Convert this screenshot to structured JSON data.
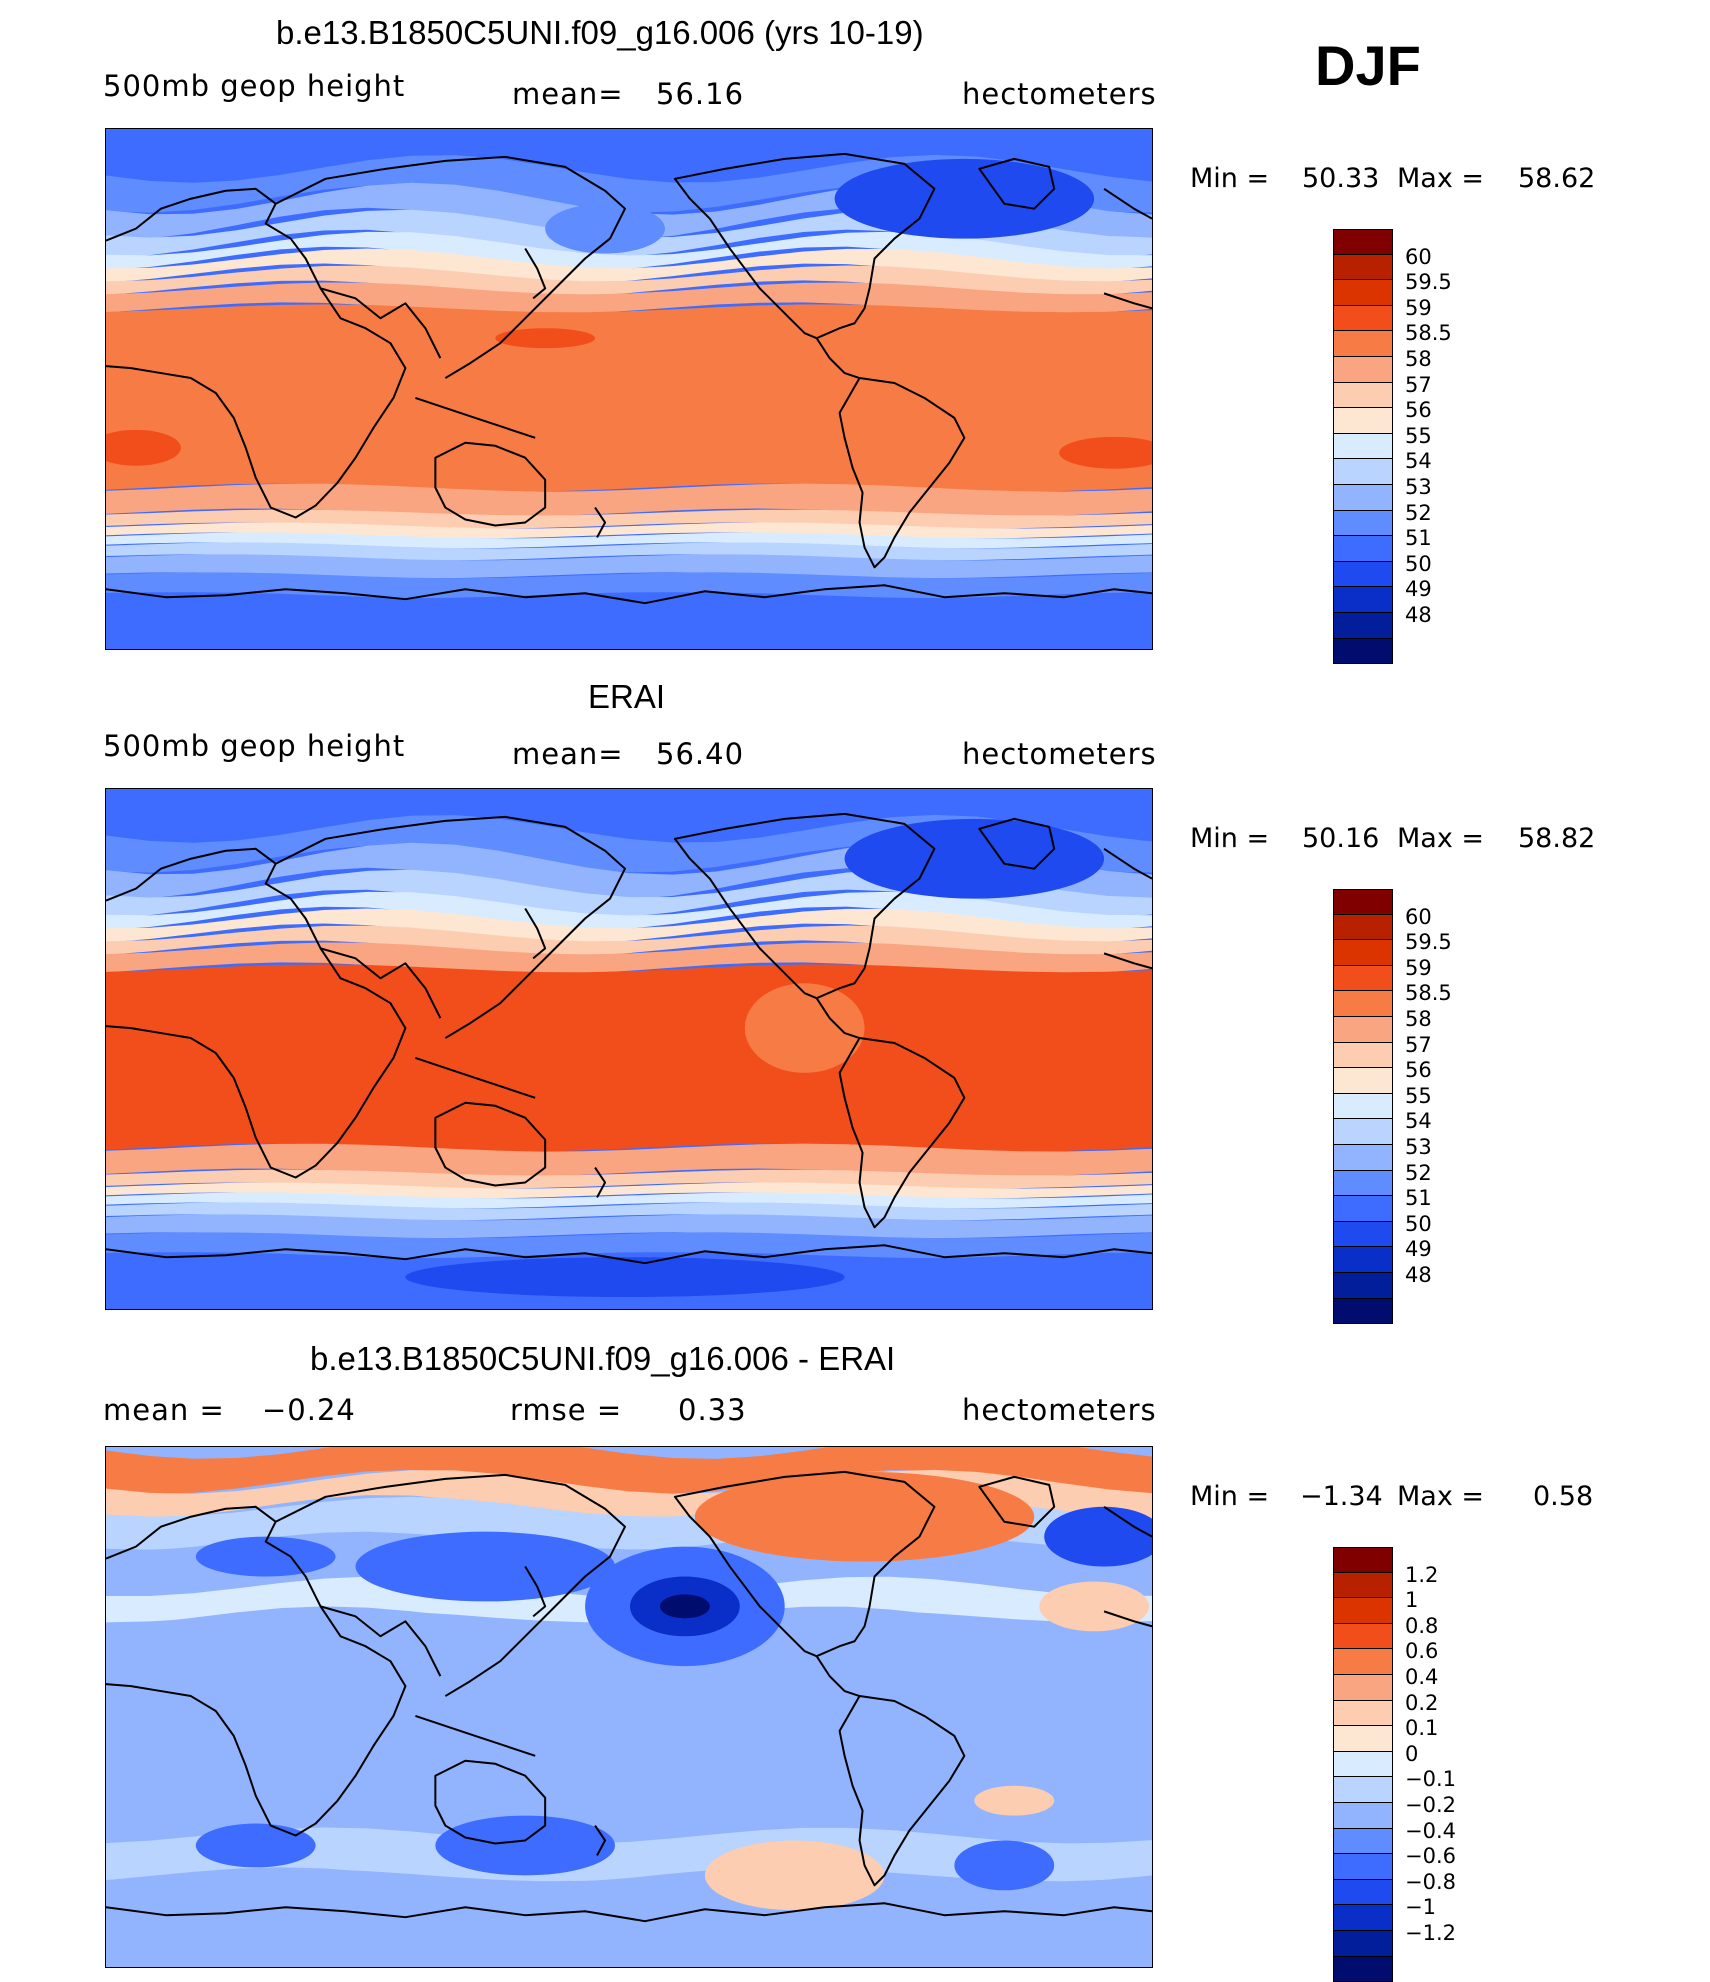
{
  "season": "DJF",
  "coast_stroke": "#000000",
  "panels": [
    {
      "id": "model",
      "title": "b.e13.B1850C5UNI.f09_g16.006 (yrs 10-19)",
      "left_label": "500mb geop height",
      "mid_label": "mean=",
      "mid_value": "56.16",
      "right_label": "hectometers",
      "min_label": "Min =",
      "min_value": "50.33",
      "max_label": "Max =",
      "max_value": "58.62",
      "colorbar": {
        "colors": [
          "#800000",
          "#B82100",
          "#DC3400",
          "#F24E1B",
          "#F77B45",
          "#F9A582",
          "#FCCDB0",
          "#FDE6D2",
          "#D9ECFF",
          "#B8D4FF",
          "#92B4FF",
          "#5F8CFF",
          "#3E6CFF",
          "#1E4AF0",
          "#0A2FC8",
          "#031E9A",
          "#000C6E"
        ],
        "labels": [
          "60",
          "59.5",
          "59",
          "58.5",
          "58",
          "57",
          "56",
          "55",
          "54",
          "53",
          "52",
          "51",
          "50",
          "49",
          "48"
        ]
      },
      "map_style": "zonal_model"
    },
    {
      "id": "obs",
      "title": "ERAI",
      "left_label": "500mb geop height",
      "mid_label": "mean=",
      "mid_value": "56.40",
      "right_label": "hectometers",
      "min_label": "Min =",
      "min_value": "50.16",
      "max_label": "Max =",
      "max_value": "58.82",
      "colorbar": {
        "colors": [
          "#800000",
          "#B82100",
          "#DC3400",
          "#F24E1B",
          "#F77B45",
          "#F9A582",
          "#FCCDB0",
          "#FDE6D2",
          "#D9ECFF",
          "#B8D4FF",
          "#92B4FF",
          "#5F8CFF",
          "#3E6CFF",
          "#1E4AF0",
          "#0A2FC8",
          "#031E9A",
          "#000C6E"
        ],
        "labels": [
          "60",
          "59.5",
          "59",
          "58.5",
          "58",
          "57",
          "56",
          "55",
          "54",
          "53",
          "52",
          "51",
          "50",
          "49",
          "48"
        ]
      },
      "map_style": "zonal_obs"
    },
    {
      "id": "diff",
      "title": "b.e13.B1850C5UNI.f09_g16.006 - ERAI",
      "left_label": "mean =",
      "left_value": "−0.24",
      "mid_label": "rmse =",
      "mid_value": "0.33",
      "right_label": "hectometers",
      "min_label": "Min =",
      "min_value": "−1.34",
      "max_label": "Max =",
      "max_value": "0.58",
      "colorbar": {
        "colors": [
          "#800000",
          "#B82100",
          "#DC3400",
          "#F24E1B",
          "#F77B45",
          "#F9A582",
          "#FCCDB0",
          "#FDE6D2",
          "#D9ECFF",
          "#B8D4FF",
          "#92B4FF",
          "#5F8CFF",
          "#3E6CFF",
          "#1E4AF0",
          "#0A2FC8",
          "#031E9A",
          "#000C6E"
        ],
        "labels": [
          "1.2",
          "1",
          "0.8",
          "0.6",
          "0.4",
          "0.2",
          "0.1",
          "0",
          "−0.1",
          "−0.2",
          "−0.4",
          "−0.6",
          "−0.8",
          "−1",
          "−1.2"
        ]
      },
      "map_style": "difference"
    }
  ]
}
